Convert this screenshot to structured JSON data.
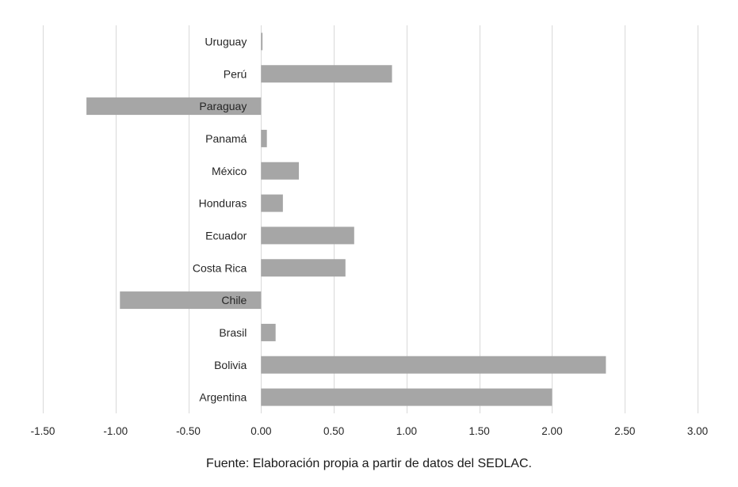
{
  "chart_data": {
    "type": "bar",
    "orientation": "horizontal",
    "categories": [
      "Uruguay",
      "Perú",
      "Paraguay",
      "Panamá",
      "México",
      "Honduras",
      "Ecuador",
      "Costa Rica",
      "Chile",
      "Brasil",
      "Bolivia",
      "Argentina"
    ],
    "values": [
      0.01,
      0.9,
      -1.2,
      0.04,
      0.26,
      0.15,
      0.64,
      0.58,
      -0.97,
      0.1,
      2.37,
      2.0
    ],
    "xlim": [
      -1.5,
      3.0
    ],
    "xticks": [
      "-1.50",
      "-1.00",
      "-0.50",
      "0.00",
      "0.50",
      "1.00",
      "1.50",
      "2.00",
      "2.50",
      "3.00"
    ],
    "xtick_values": [
      -1.5,
      -1.0,
      -0.5,
      0.0,
      0.5,
      1.0,
      1.5,
      2.0,
      2.5,
      3.0
    ],
    "grid": true,
    "bar_color": "#a6a6a6"
  },
  "source_note": "Fuente: Elaboración propia a partir de datos del SEDLAC."
}
